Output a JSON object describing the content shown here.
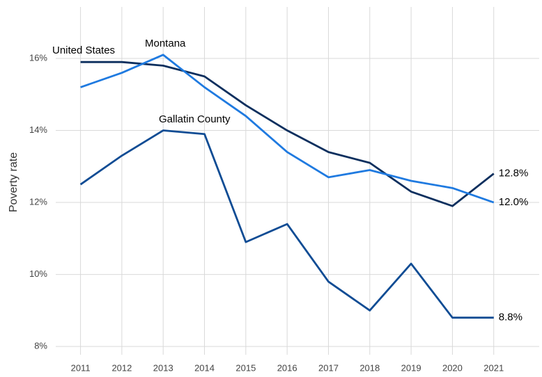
{
  "chart_data": {
    "type": "line",
    "y_label": "Poverty rate",
    "x": [
      2011,
      2012,
      2013,
      2014,
      2015,
      2016,
      2017,
      2018,
      2019,
      2020,
      2021
    ],
    "series": [
      {
        "name": "United States",
        "color": "#0c2f5e",
        "values": [
          15.9,
          15.9,
          15.8,
          15.5,
          14.7,
          14.0,
          13.4,
          13.1,
          12.3,
          11.9,
          12.8
        ],
        "value_labels": [
          null,
          null,
          null,
          null,
          null,
          null,
          null,
          null,
          null,
          null,
          "12.8%"
        ]
      },
      {
        "name": "Montana",
        "color": "#1f7ae0",
        "values": [
          15.2,
          15.6,
          16.1,
          15.2,
          14.4,
          13.4,
          12.7,
          12.9,
          12.6,
          12.4,
          12.0
        ],
        "value_labels": [
          null,
          null,
          null,
          null,
          null,
          null,
          null,
          null,
          null,
          null,
          "12.0%"
        ]
      },
      {
        "name": "Gallatin County",
        "color": "#0f4c94",
        "values": [
          12.5,
          13.3,
          14.0,
          13.9,
          10.9,
          11.4,
          9.8,
          9.0,
          10.3,
          8.8,
          8.8
        ],
        "value_labels": [
          null,
          null,
          null,
          null,
          null,
          null,
          null,
          null,
          null,
          null,
          "8.8%"
        ]
      }
    ],
    "xlim": [
      2010.4,
      2022.1
    ],
    "xticks": [
      2011,
      2012,
      2013,
      2014,
      2015,
      2016,
      2017,
      2018,
      2019,
      2020,
      2021
    ],
    "ylim": [
      7.77,
      17.43
    ],
    "yticks": [
      {
        "value": 8,
        "label": "8%"
      },
      {
        "value": 10,
        "label": "10%"
      },
      {
        "value": 12,
        "label": "12%"
      },
      {
        "value": 14,
        "label": "14%"
      },
      {
        "value": 16,
        "label": "16%"
      }
    ],
    "grid": true
  }
}
